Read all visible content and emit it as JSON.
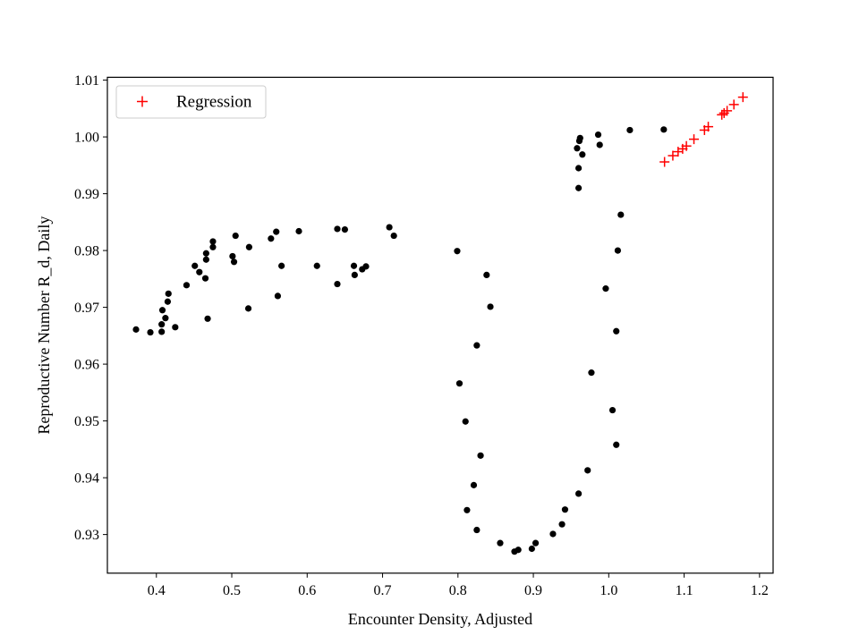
{
  "chart_data": {
    "type": "scatter",
    "title": "",
    "xlabel": "Encounter Density, Adjusted",
    "ylabel": "Reproductive Number R_d, Daily",
    "xlim": [
      0.335,
      1.218
    ],
    "ylim": [
      0.9232,
      1.0105
    ],
    "xticks": [
      0.4,
      0.5,
      0.6,
      0.7,
      0.8,
      0.9,
      1.0,
      1.1,
      1.2
    ],
    "xtick_labels": [
      "0.4",
      "0.5",
      "0.6",
      "0.7",
      "0.8",
      "0.9",
      "1.0",
      "1.1",
      "1.2"
    ],
    "yticks": [
      0.93,
      0.94,
      0.95,
      0.96,
      0.97,
      0.98,
      0.99,
      1.0,
      1.01
    ],
    "ytick_labels": [
      "0.93",
      "0.94",
      "0.95",
      "0.96",
      "0.97",
      "0.98",
      "0.99",
      "1.00",
      "1.01"
    ],
    "grid": false,
    "legend_position": "top-left",
    "series": [
      {
        "name": "",
        "marker": "dot",
        "color": "#000000",
        "points": [
          [
            0.373,
            0.9661
          ],
          [
            0.392,
            0.9656
          ],
          [
            0.407,
            0.9657
          ],
          [
            0.407,
            0.967
          ],
          [
            0.408,
            0.9695
          ],
          [
            0.412,
            0.9681
          ],
          [
            0.415,
            0.971
          ],
          [
            0.416,
            0.9724
          ],
          [
            0.425,
            0.9665
          ],
          [
            0.44,
            0.9739
          ],
          [
            0.451,
            0.9773
          ],
          [
            0.457,
            0.9762
          ],
          [
            0.465,
            0.9751
          ],
          [
            0.466,
            0.9784
          ],
          [
            0.466,
            0.9795
          ],
          [
            0.468,
            0.968
          ],
          [
            0.475,
            0.9806
          ],
          [
            0.475,
            0.9816
          ],
          [
            0.501,
            0.979
          ],
          [
            0.503,
            0.978
          ],
          [
            0.505,
            0.9826
          ],
          [
            0.522,
            0.9698
          ],
          [
            0.523,
            0.9806
          ],
          [
            0.552,
            0.9821
          ],
          [
            0.559,
            0.9833
          ],
          [
            0.561,
            0.972
          ],
          [
            0.566,
            0.9773
          ],
          [
            0.589,
            0.9834
          ],
          [
            0.613,
            0.9773
          ],
          [
            0.64,
            0.9838
          ],
          [
            0.64,
            0.9741
          ],
          [
            0.65,
            0.9837
          ],
          [
            0.662,
            0.9773
          ],
          [
            0.663,
            0.9757
          ],
          [
            0.673,
            0.9767
          ],
          [
            0.678,
            0.9772
          ],
          [
            0.709,
            0.9841
          ],
          [
            0.715,
            0.9826
          ],
          [
            0.799,
            0.9799
          ],
          [
            0.802,
            0.9566
          ],
          [
            0.81,
            0.9499
          ],
          [
            0.812,
            0.9343
          ],
          [
            0.821,
            0.9387
          ],
          [
            0.825,
            0.9633
          ],
          [
            0.825,
            0.9308
          ],
          [
            0.83,
            0.9439
          ],
          [
            0.838,
            0.9757
          ],
          [
            0.843,
            0.9701
          ],
          [
            0.856,
            0.9285
          ],
          [
            0.875,
            0.927
          ],
          [
            0.88,
            0.9273
          ],
          [
            0.898,
            0.9275
          ],
          [
            0.903,
            0.9285
          ],
          [
            0.926,
            0.9301
          ],
          [
            0.938,
            0.9318
          ],
          [
            0.942,
            0.9344
          ],
          [
            0.958,
            0.998
          ],
          [
            0.96,
            0.9372
          ],
          [
            0.96,
            0.9945
          ],
          [
            0.96,
            0.991
          ],
          [
            0.961,
            0.9993
          ],
          [
            0.962,
            0.9998
          ],
          [
            0.965,
            0.9969
          ],
          [
            0.972,
            0.9413
          ],
          [
            0.977,
            0.9585
          ],
          [
            0.986,
            1.0004
          ],
          [
            0.988,
            0.9986
          ],
          [
            0.996,
            0.9733
          ],
          [
            1.005,
            0.9519
          ],
          [
            1.01,
            0.9458
          ],
          [
            1.01,
            0.9658
          ],
          [
            1.012,
            0.98
          ],
          [
            1.016,
            0.9863
          ],
          [
            1.028,
            1.0012
          ],
          [
            1.073,
            1.0013
          ]
        ]
      },
      {
        "name": "Regression",
        "marker": "plus",
        "color": "#ff0000",
        "points": [
          [
            1.074,
            0.9956
          ],
          [
            1.085,
            0.9967
          ],
          [
            1.092,
            0.9974
          ],
          [
            1.098,
            0.9979
          ],
          [
            1.103,
            0.9984
          ],
          [
            1.113,
            0.9996
          ],
          [
            1.127,
            1.0012
          ],
          [
            1.132,
            1.0018
          ],
          [
            1.15,
            1.0039
          ],
          [
            1.153,
            1.0042
          ],
          [
            1.157,
            1.0046
          ],
          [
            1.166,
            1.0057
          ],
          [
            1.178,
            1.007
          ]
        ]
      }
    ]
  }
}
